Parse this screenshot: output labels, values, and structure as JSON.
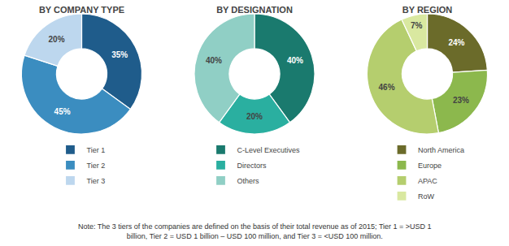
{
  "chart_data": [
    {
      "type": "donut",
      "title": "BY COMPANY TYPE",
      "categories": [
        "Tier 1",
        "Tier 2",
        "Tier 3"
      ],
      "values": [
        35,
        45,
        20
      ],
      "value_labels": [
        "35%",
        "45%",
        "20%"
      ],
      "colors": [
        "#1F5C8B",
        "#3B8DC0",
        "#BDD7EE"
      ],
      "data_labels": true,
      "legend": "bottom",
      "annotations": [
        "Note: The 3 tiers of the companies are defined on the basis of their total revenue as of 2015; Tier 1 = >USD 1",
        "billion, Tier 2 = USD 1 billion – USD 100 million, and Tier 3 = <USD 100 million."
      ]
    },
    {
      "type": "donut",
      "title": "BY DESIGNATION",
      "categories": [
        "C-Level Executives",
        "Directors",
        "Others"
      ],
      "values": [
        40,
        20,
        40
      ],
      "value_labels": [
        "40%",
        "20%",
        "40%"
      ],
      "colors": [
        "#1A7A6E",
        "#2AAFA0",
        "#90CFC5"
      ],
      "data_labels": true,
      "legend": "bottom"
    },
    {
      "type": "donut",
      "title": "BY REGION",
      "categories": [
        "North America",
        "Europe",
        "APAC",
        "RoW"
      ],
      "values": [
        24,
        23,
        46,
        7
      ],
      "value_labels": [
        "24%",
        "23%",
        "46%",
        "7%"
      ],
      "colors": [
        "#6B6B2A",
        "#8CB84D",
        "#B5CE6E",
        "#D9E8A0"
      ],
      "data_labels": true,
      "legend": "bottom"
    }
  ]
}
